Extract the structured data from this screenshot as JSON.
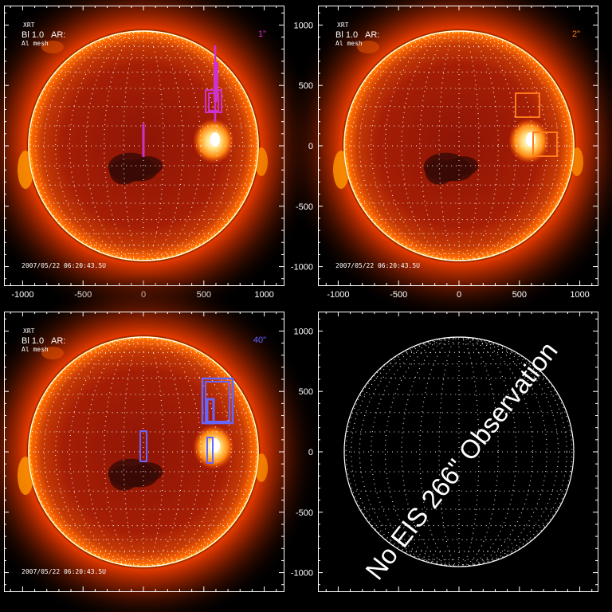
{
  "panels": [
    {
      "id": "tl",
      "has_image": true,
      "header_left": "XRT",
      "header_filter": "Bl 1.0",
      "header_sub": "Al mesh",
      "header_ar": "AR:",
      "slit_label": "1\"",
      "slit_color": "#cc33cc",
      "timestamp": "2007/05/22 06:20:43.5U",
      "x_ticks": [
        "-1000",
        "-500",
        "0",
        "500",
        "1000"
      ],
      "y_ticks": [],
      "overlay": "slits-1"
    },
    {
      "id": "tr",
      "has_image": true,
      "header_left": "XRT",
      "header_filter": "Bl 1.0",
      "header_sub": "Al mesh",
      "header_ar": "AR:",
      "slit_label": "2\"",
      "slit_color": "#ff7a1a",
      "timestamp": "2007/05/22 06:20:43.5U",
      "x_ticks": [
        "-1000",
        "-500",
        "0",
        "500",
        "1000"
      ],
      "y_ticks": [
        "1000",
        "500",
        "0",
        "-500",
        "-1000"
      ],
      "overlay": "slits-2"
    },
    {
      "id": "bl",
      "has_image": true,
      "header_left": "XRT",
      "header_filter": "Bl 1.0",
      "header_sub": "Al mesh",
      "header_ar": "AR:",
      "slit_label": "40\"",
      "slit_color": "#6666ff",
      "timestamp": "2007/05/22 06:20:43.5U",
      "x_ticks": [],
      "y_ticks": [],
      "overlay": "slits-40"
    },
    {
      "id": "br",
      "has_image": false,
      "x_ticks": [],
      "y_ticks": [
        "1000",
        "500",
        "0",
        "-500",
        "-1000"
      ],
      "no_obs_text": "No EIS 266\" Observation"
    }
  ],
  "colors": {
    "background": "#000000",
    "frame": "#ffffff",
    "solar_core": "#9b1a06",
    "solar_limb": "#ff5a00",
    "corona": "#c83c00"
  }
}
